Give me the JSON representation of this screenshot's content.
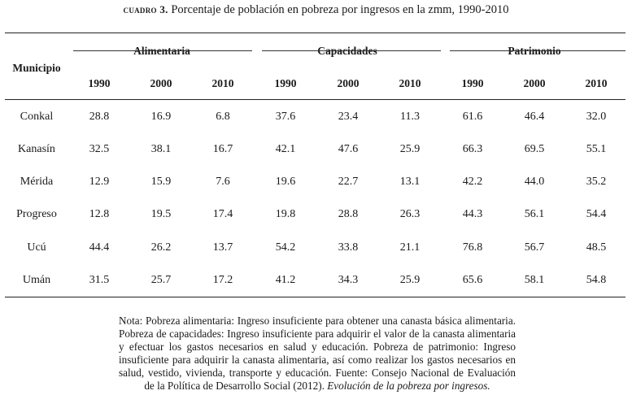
{
  "caption": {
    "label": "cuadro 3.",
    "text": "Porcentaje de población en pobreza por ingresos en la zmm, 1990-2010"
  },
  "table": {
    "row_header": "Municipio",
    "groups": [
      {
        "name": "Alimentaria",
        "years": [
          "1990",
          "2000",
          "2010"
        ]
      },
      {
        "name": "Capacidades",
        "years": [
          "1990",
          "2000",
          "2010"
        ]
      },
      {
        "name": "Patrimonio",
        "years": [
          "1990",
          "2000",
          "2010"
        ]
      }
    ],
    "rows": [
      {
        "municipio": "Conkal",
        "values": [
          "28.8",
          "16.9",
          "6.8",
          "37.6",
          "23.4",
          "11.3",
          "61.6",
          "46.4",
          "32.0"
        ]
      },
      {
        "municipio": "Kanasín",
        "values": [
          "32.5",
          "38.1",
          "16.7",
          "42.1",
          "47.6",
          "25.9",
          "66.3",
          "69.5",
          "55.1"
        ]
      },
      {
        "municipio": "Mérida",
        "values": [
          "12.9",
          "15.9",
          "7.6",
          "19.6",
          "22.7",
          "13.1",
          "42.2",
          "44.0",
          "35.2"
        ]
      },
      {
        "municipio": "Progreso",
        "values": [
          "12.8",
          "19.5",
          "17.4",
          "19.8",
          "28.8",
          "26.3",
          "44.3",
          "56.1",
          "54.4"
        ]
      },
      {
        "municipio": "Ucú",
        "values": [
          "44.4",
          "26.2",
          "13.7",
          "54.2",
          "33.8",
          "21.1",
          "76.8",
          "56.7",
          "48.5"
        ]
      },
      {
        "municipio": "Umán",
        "values": [
          "31.5",
          "25.7",
          "17.2",
          "41.2",
          "34.3",
          "25.9",
          "65.6",
          "58.1",
          "54.8"
        ]
      }
    ]
  },
  "note": {
    "text": "Nota: Pobreza alimentaria: Ingreso insuficiente para obtener una canasta básica alimentaria. Pobreza de capacidades: Ingreso insuficiente para adquirir el valor de la canasta alimentaria y efectuar los gastos necesarios en salud y educación. Pobreza de patrimonio: Ingreso insuficiente para adquirir la canasta alimentaria, así como realizar los gastos necesarios en salud, vestido, vivienda, transporte y educación. Fuente: Consejo Nacional de Evaluación de la Política de Desarrollo Social (2012). ",
    "source_title": "Evolución de la pobreza por ingresos."
  }
}
